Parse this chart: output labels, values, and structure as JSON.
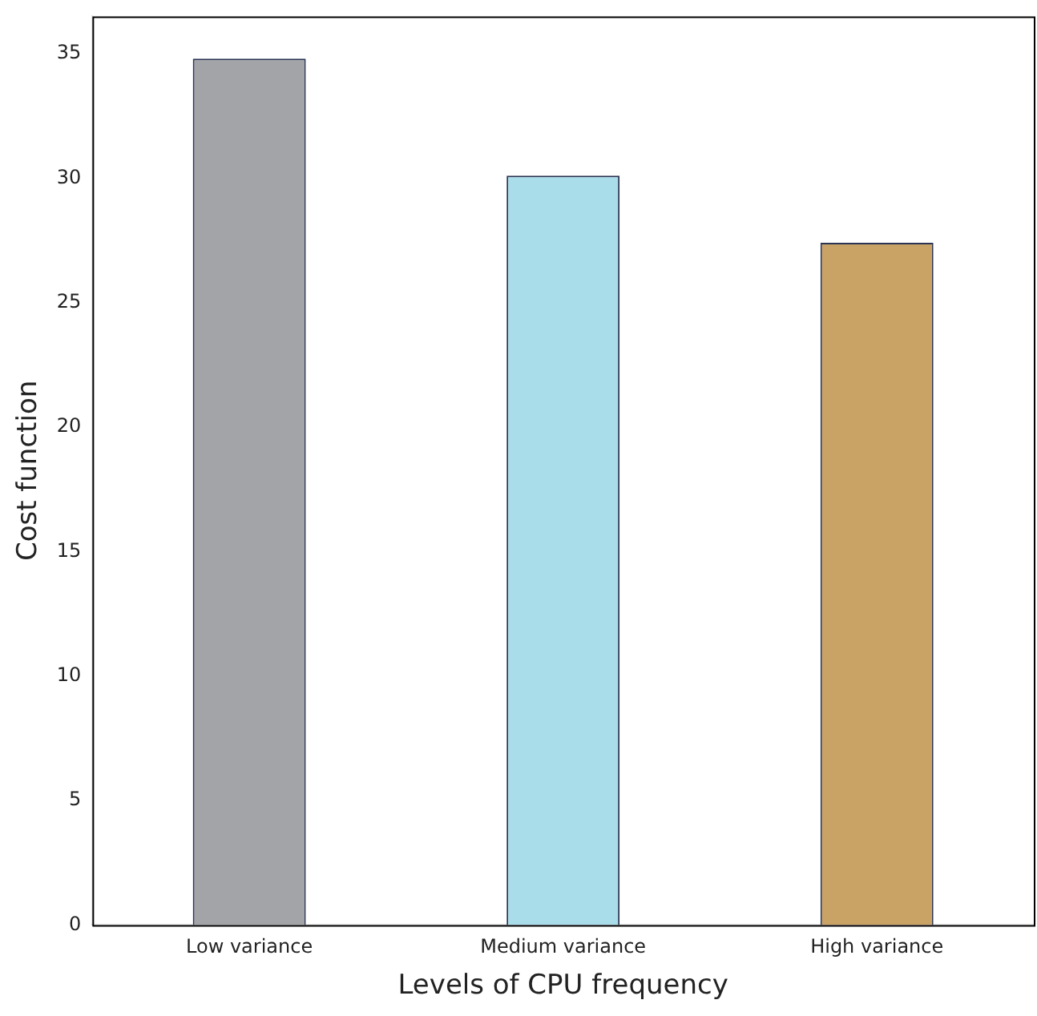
{
  "chart_data": {
    "type": "bar",
    "xlabel": "Levels of CPU frequency",
    "ylabel": "Cost function",
    "categories": [
      "Low variance",
      "Medium variance",
      "High variance"
    ],
    "values": [
      34.8,
      30.1,
      27.4
    ],
    "colors": [
      "#a3a4a8",
      "#a9dde9",
      "#c9a266"
    ],
    "ylim": [
      0,
      36.5
    ],
    "yticks": [
      0,
      5,
      10,
      15,
      20,
      25,
      30,
      35
    ],
    "grid": false,
    "legend": false
  }
}
